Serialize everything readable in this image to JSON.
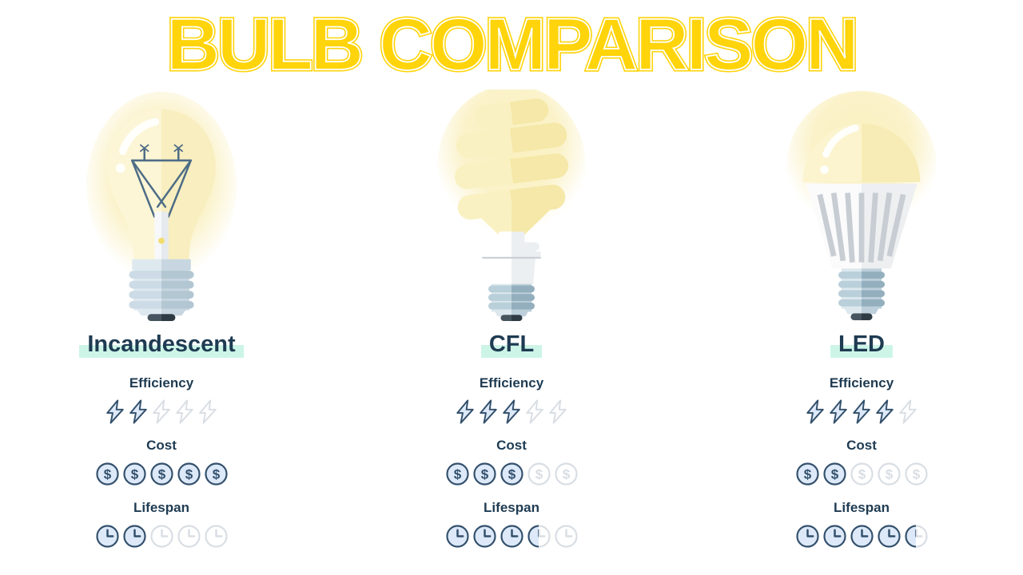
{
  "title": {
    "text": "BULB COMPARISON"
  },
  "metrics": [
    {
      "key": "efficiency",
      "label": "Efficiency",
      "icon": "lightning-icon"
    },
    {
      "key": "cost",
      "label": "Cost",
      "icon": "dollar-coin-icon"
    },
    {
      "key": "lifespan",
      "label": "Lifespan",
      "icon": "clock-icon"
    }
  ],
  "rating_max": 5,
  "columns": [
    {
      "id": "incandescent",
      "name": "Incandescent",
      "ratings": {
        "efficiency": 2,
        "cost": 5,
        "lifespan": 2
      }
    },
    {
      "id": "cfl",
      "name": "CFL",
      "ratings": {
        "efficiency": 3,
        "cost": 3,
        "lifespan": 3.5
      }
    },
    {
      "id": "led",
      "name": "LED",
      "ratings": {
        "efficiency": 4,
        "cost": 2,
        "lifespan": 4.5
      }
    }
  ],
  "chart_data": {
    "type": "table",
    "title": "BULB COMPARISON",
    "categories": [
      "Incandescent",
      "CFL",
      "LED"
    ],
    "series": [
      {
        "name": "Efficiency (out of 5)",
        "values": [
          2,
          3,
          4
        ]
      },
      {
        "name": "Cost (out of 5)",
        "values": [
          5,
          3,
          2
        ]
      },
      {
        "name": "Lifespan (out of 5)",
        "values": [
          2,
          3.5,
          4.5
        ]
      }
    ]
  },
  "colors": {
    "title_yellow": "#FFD40A",
    "text_navy": "#1E3B52",
    "highlight_mint": "#CDF5E7",
    "icon_filled_stroke": "#33506C",
    "icon_filled_fill": "#DDE9F8",
    "icon_empty_stroke": "#D9DEE4",
    "bulb_glow": "#FAF0C0",
    "bulb_glass": "#FBF3CC",
    "base_metal": "#D7E4EC",
    "base_tip": "#3E4C58"
  }
}
